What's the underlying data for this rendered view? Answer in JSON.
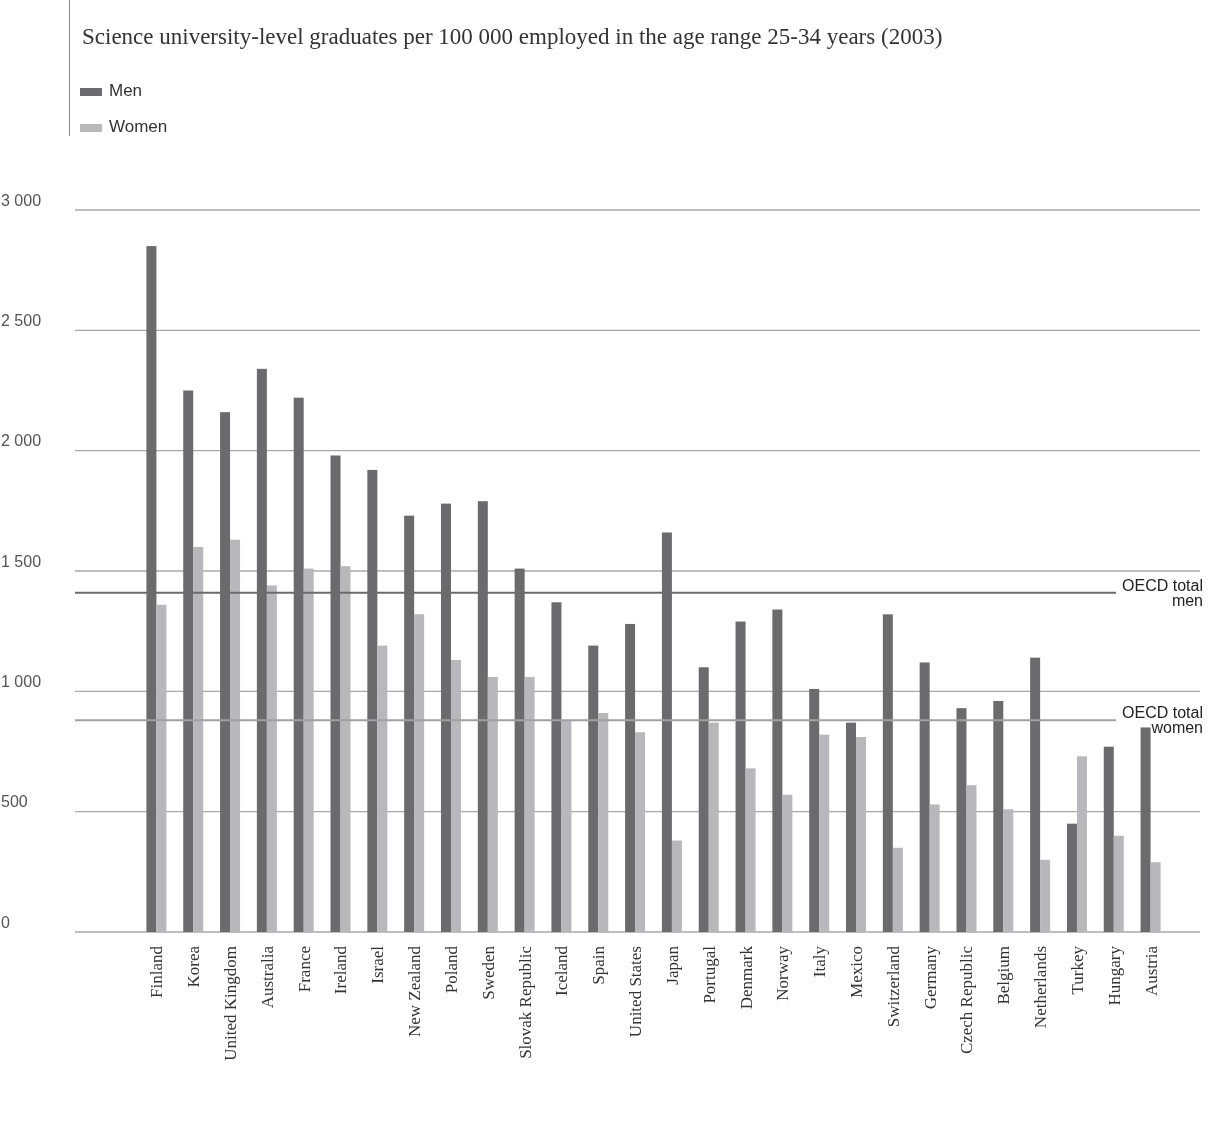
{
  "chart_data": {
    "type": "bar",
    "title": "Science university-level graduates per 100 000 employed in the age range 25-34 years (2003)",
    "categories": [
      "Finland",
      "Korea",
      "United Kingdom",
      "Australia",
      "France",
      "Ireland",
      "Israel",
      "New Zealand",
      "Poland",
      "Sweden",
      "Slovak Republic",
      "Iceland",
      "Spain",
      "United States",
      "Japan",
      "Portugal",
      "Denmark",
      "Norway",
      "Italy",
      "Mexico",
      "Switzerland",
      "Germany",
      "Czech Republic",
      "Belgium",
      "Netherlands",
      "Turkey",
      "Hungary",
      "Austria"
    ],
    "series": [
      {
        "name": "Men",
        "color": "#6b6b6d",
        "values": [
          2850,
          2250,
          2160,
          2340,
          2220,
          1980,
          1920,
          1730,
          1780,
          1790,
          1510,
          1370,
          1190,
          1280,
          1660,
          1100,
          1290,
          1340,
          1010,
          870,
          1320,
          1120,
          930,
          960,
          1140,
          450,
          770,
          850
        ]
      },
      {
        "name": "Women",
        "color": "#b8b8bc",
        "values": [
          1360,
          1600,
          1630,
          1440,
          1510,
          1520,
          1190,
          1320,
          1130,
          1060,
          1060,
          880,
          910,
          830,
          380,
          870,
          680,
          570,
          820,
          810,
          350,
          530,
          610,
          510,
          300,
          730,
          400,
          290
        ]
      }
    ],
    "ylim": [
      0,
      3000
    ],
    "yticks": [
      {
        "value": 0,
        "label": "0"
      },
      {
        "value": 500,
        "label": "500"
      },
      {
        "value": 1000,
        "label": "1 000"
      },
      {
        "value": 1500,
        "label": "1 500"
      },
      {
        "value": 2000,
        "label": "2 000"
      },
      {
        "value": 2500,
        "label": "2 500"
      },
      {
        "value": 3000,
        "label": "3 000"
      }
    ],
    "grid": "y",
    "legend": "top left",
    "ref_lines": [
      {
        "axis": "y",
        "value": 1410,
        "label": "OECD total men",
        "color": "#6b6b6d"
      },
      {
        "axis": "y",
        "value": 880,
        "label": "OECD total women",
        "color": "#a0a0a3"
      }
    ]
  }
}
